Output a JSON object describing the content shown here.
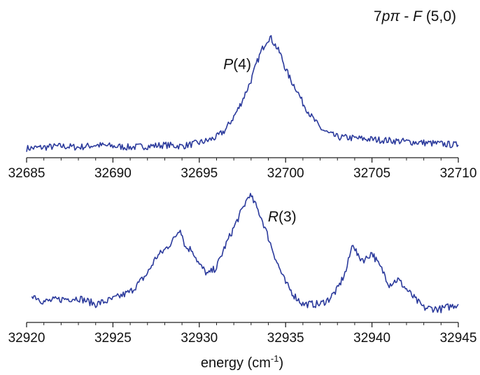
{
  "figure": {
    "title": {
      "prefix": "7",
      "p": "p",
      "pi": "π",
      "dash": " - ",
      "F": "F",
      "rest": " (5,0)"
    },
    "xlabel": {
      "text": "energy (cm",
      "sup": "-1",
      "close": ")"
    }
  },
  "chart_data": [
    {
      "type": "line",
      "title": "7pπ - F (5,0)",
      "xlabel": "",
      "ylabel": "",
      "xlim": [
        32685,
        32710
      ],
      "ylim": [
        0,
        1
      ],
      "grid": false,
      "legend": "none",
      "xticks": [
        "32685",
        "32690",
        "32695",
        "32700",
        "32705",
        "32710"
      ],
      "annotations": [
        {
          "text_italic": "P",
          "text_rest": "(4)",
          "x": 32697.2,
          "y": 0.72
        }
      ],
      "series": [
        {
          "color": "#2b3a9c",
          "x": [
            32685,
            32686,
            32687,
            32688,
            32689,
            32690,
            32691,
            32692,
            32693,
            32694,
            32695,
            32695.5,
            32696,
            32696.5,
            32697,
            32697.3,
            32697.6,
            32698,
            32698.3,
            32698.6,
            32698.9,
            32699.1,
            32699.4,
            32699.7,
            32700,
            32700.3,
            32700.6,
            32701,
            32701.5,
            32702,
            32702.5,
            32703,
            32704,
            32705,
            32706,
            32707,
            32708,
            32709,
            32710
          ],
          "y": [
            0.02,
            0.03,
            0.04,
            0.03,
            0.05,
            0.04,
            0.03,
            0.04,
            0.05,
            0.04,
            0.07,
            0.09,
            0.12,
            0.18,
            0.3,
            0.38,
            0.48,
            0.62,
            0.76,
            0.88,
            0.97,
            1.0,
            0.93,
            0.85,
            0.72,
            0.62,
            0.55,
            0.42,
            0.3,
            0.2,
            0.15,
            0.12,
            0.11,
            0.1,
            0.09,
            0.08,
            0.07,
            0.06,
            0.05
          ]
        }
      ]
    },
    {
      "type": "line",
      "title": "",
      "xlabel": "energy (cm-1)",
      "ylabel": "",
      "xlim": [
        32920,
        32945
      ],
      "ylim": [
        0,
        1
      ],
      "grid": false,
      "legend": "none",
      "xticks": [
        "32920",
        "32925",
        "32930",
        "32935",
        "32940",
        "32945"
      ],
      "annotations": [
        {
          "text_italic": "R",
          "text_rest": "(3)",
          "x": 32934.8,
          "y": 0.75
        }
      ],
      "series": [
        {
          "color": "#2b3a9c",
          "x": [
            32920.3,
            32921,
            32922,
            32923,
            32924,
            32925,
            32926,
            32926.5,
            32927,
            32927.5,
            32928,
            32928.5,
            32928.9,
            32929.2,
            32929.6,
            32930,
            32930.5,
            32931,
            32931.5,
            32932,
            32932.5,
            32932.9,
            32933.2,
            32933.6,
            32934,
            32934.5,
            32935,
            32935.5,
            32936,
            32937,
            32937.5,
            32938,
            32938.5,
            32938.9,
            32939.2,
            32939.6,
            32940,
            32940.3,
            32940.7,
            32941,
            32941.5,
            32942,
            32942.5,
            32943,
            32944,
            32945
          ],
          "y": [
            0.16,
            0.1,
            0.12,
            0.13,
            0.08,
            0.12,
            0.18,
            0.25,
            0.33,
            0.46,
            0.52,
            0.6,
            0.7,
            0.54,
            0.52,
            0.4,
            0.32,
            0.38,
            0.55,
            0.7,
            0.85,
            0.97,
            0.9,
            0.78,
            0.62,
            0.42,
            0.25,
            0.15,
            0.08,
            0.08,
            0.12,
            0.2,
            0.35,
            0.58,
            0.46,
            0.44,
            0.5,
            0.42,
            0.33,
            0.24,
            0.28,
            0.2,
            0.12,
            0.05,
            0.04,
            0.08
          ]
        }
      ]
    }
  ]
}
